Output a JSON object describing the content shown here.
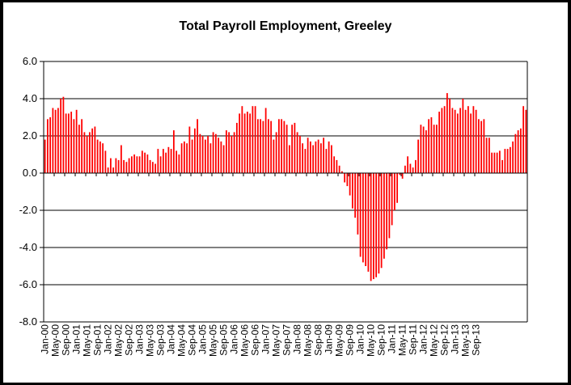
{
  "chart_data": {
    "type": "bar",
    "title": "Total Payroll Employment, Greeley",
    "xlabel": "",
    "ylabel": "",
    "ylim": [
      -8,
      6
    ],
    "yticks": [
      6,
      4,
      2,
      0,
      -2,
      -4,
      -6,
      -8
    ],
    "ytick_labels": [
      "6.0",
      "4.0",
      "2.0",
      "0.0",
      "-2.0",
      "-4.0",
      "-6.0",
      "-8.0"
    ],
    "grid": true,
    "legend": "none",
    "bar_color": "#ff0000",
    "x_start": "Jan-00",
    "tick_labels": [
      "Jan-00",
      "May-00",
      "Sep-00",
      "Jan-01",
      "May-01",
      "Sep-01",
      "Jan-02",
      "May-02",
      "Sep-02",
      "Jan-03",
      "May-03",
      "Sep-03",
      "Jan-04",
      "May-04",
      "Sep-04",
      "Jan-05",
      "May-05",
      "Sep-05",
      "Jan-06",
      "May-06",
      "Sep-06",
      "Jan-07",
      "May-07",
      "Sep-07",
      "Jan-08",
      "May-08",
      "Sep-08",
      "Jan-09",
      "May-09",
      "Sep-09",
      "Jan-10",
      "May-10",
      "Sep-10",
      "Jan-11",
      "May-11",
      "Sep-11",
      "Jan-12",
      "May-12",
      "Sep-12",
      "Jan-13",
      "May-13",
      "Sep-13"
    ],
    "values": [
      1.8,
      2.9,
      3.0,
      3.5,
      3.4,
      3.5,
      4.0,
      4.1,
      3.2,
      3.2,
      3.3,
      2.9,
      3.4,
      2.6,
      2.9,
      2.2,
      2.0,
      2.2,
      2.4,
      2.5,
      1.8,
      1.7,
      1.6,
      1.2,
      0.3,
      0.8,
      0.3,
      0.8,
      0.7,
      1.5,
      0.7,
      0.6,
      0.8,
      0.9,
      1.0,
      0.9,
      0.9,
      1.2,
      1.1,
      1.0,
      0.7,
      0.6,
      0.5,
      1.3,
      0.9,
      1.3,
      1.1,
      1.4,
      1.3,
      2.3,
      1.2,
      1.0,
      1.6,
      1.7,
      1.6,
      2.5,
      1.8,
      2.4,
      2.9,
      2.1,
      2.0,
      1.8,
      2.0,
      1.6,
      2.2,
      2.1,
      1.9,
      1.7,
      1.5,
      2.3,
      2.2,
      2.0,
      2.2,
      2.7,
      3.2,
      3.6,
      3.2,
      3.3,
      3.2,
      3.6,
      3.6,
      2.9,
      2.9,
      2.8,
      3.5,
      2.9,
      2.8,
      1.8,
      2.2,
      2.9,
      2.9,
      2.8,
      2.6,
      1.5,
      2.6,
      2.7,
      2.2,
      2.0,
      1.6,
      1.3,
      1.9,
      1.7,
      1.5,
      1.7,
      1.8,
      1.6,
      1.9,
      1.3,
      1.7,
      1.5,
      0.9,
      0.7,
      0.4,
      0.1,
      -0.5,
      -0.7,
      -1.2,
      -1.9,
      -2.4,
      -3.3,
      -4.5,
      -4.8,
      -5.0,
      -5.3,
      -5.8,
      -5.7,
      -5.6,
      -5.4,
      -5.1,
      -4.6,
      -4.1,
      -3.5,
      -2.8,
      -2.0,
      -1.6,
      -0.1,
      -0.3,
      0.4,
      0.9,
      0.5,
      0.3,
      0.7,
      1.8,
      2.6,
      2.5,
      2.3,
      2.9,
      3.0,
      2.6,
      2.6,
      3.3,
      3.5,
      3.6,
      4.3,
      4.0,
      3.5,
      3.4,
      3.2,
      3.5,
      4.0,
      3.4,
      3.6,
      3.2,
      3.6,
      3.4,
      2.9,
      2.8,
      2.9,
      1.9,
      1.9,
      1.1,
      1.1,
      1.1,
      1.2,
      0.7,
      1.3,
      1.3,
      1.4,
      1.7,
      2.1,
      2.3,
      2.4,
      3.6,
      3.4
    ]
  }
}
